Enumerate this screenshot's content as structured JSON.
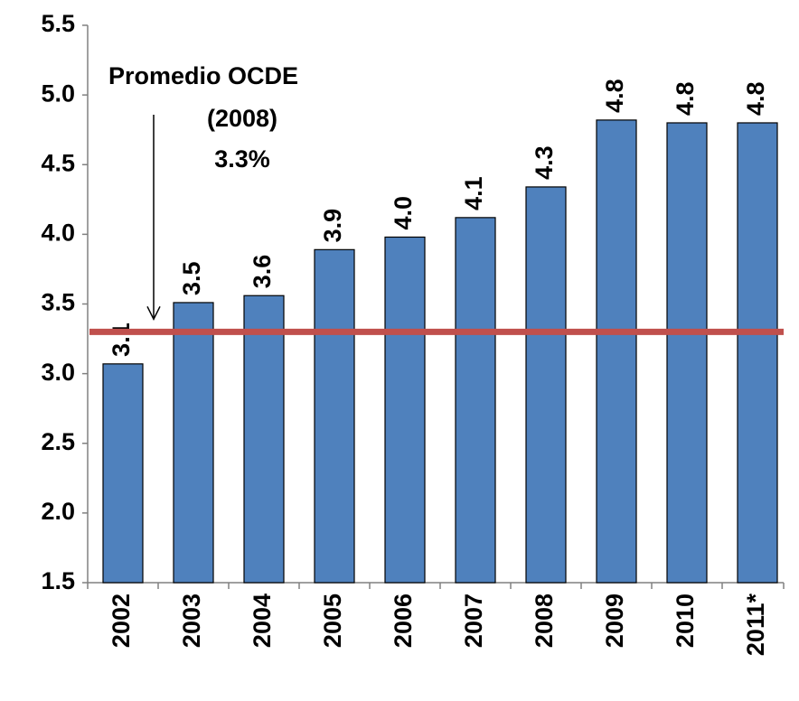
{
  "chart_data": {
    "type": "bar",
    "categories": [
      "2002",
      "2003",
      "2004",
      "2005",
      "2006",
      "2007",
      "2008",
      "2009",
      "2010",
      "2011*"
    ],
    "values": [
      3.07,
      3.51,
      3.56,
      3.89,
      3.98,
      4.12,
      4.34,
      4.82,
      4.8,
      4.8
    ],
    "value_labels": [
      "3.1",
      "3.5",
      "3.6",
      "3.9",
      "4.0",
      "4.1",
      "4.3",
      "4.8",
      "4.8",
      "4.8"
    ],
    "color": "#4f81bd",
    "ylim": [
      1.5,
      5.5
    ],
    "yticks": [
      1.5,
      {
        "value": 2,
        "label": "2.0"
      },
      2.5,
      {
        "value": 3,
        "label": "3.0"
      },
      3.5,
      {
        "value": 4,
        "label": "4.0"
      },
      4.5,
      {
        "value": 5,
        "label": "5.0"
      },
      5.5
    ],
    "reference_line": {
      "value": 3.3,
      "color": "#c0504d"
    },
    "annotations": [
      "Promedio OCDE",
      "(2008)",
      "3.3%"
    ]
  }
}
